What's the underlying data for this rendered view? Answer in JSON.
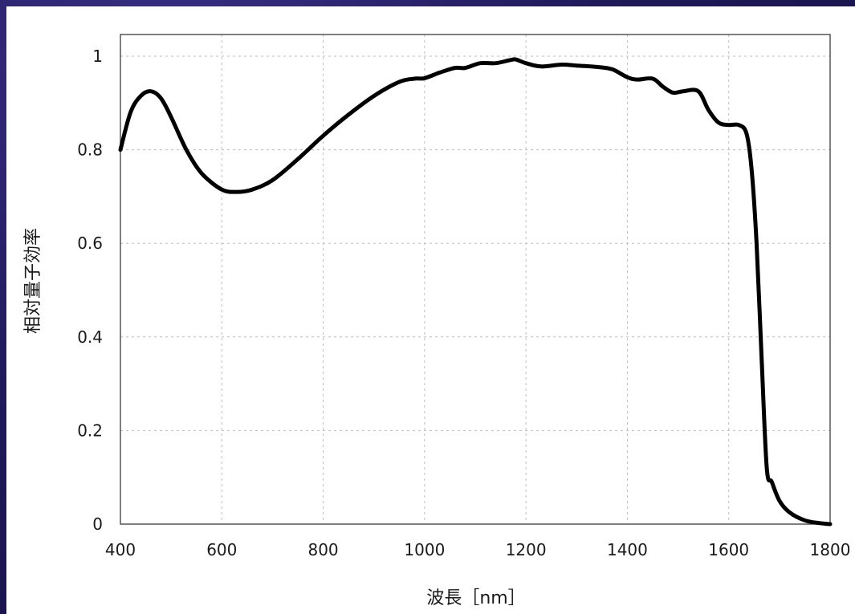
{
  "chart_data": {
    "type": "line",
    "title": "",
    "xlabel": "波長［nm］",
    "ylabel": "相対量子効率",
    "xlim": [
      400,
      1800
    ],
    "ylim": [
      0,
      1
    ],
    "grid": true,
    "x_ticks": [
      "400",
      "600",
      "800",
      "1000",
      "1200",
      "1400",
      "1600",
      "1800"
    ],
    "y_ticks": [
      "0",
      "0.2",
      "0.4",
      "0.6",
      "0.8",
      "1"
    ],
    "series": [
      {
        "x": [
          400,
          420,
          440,
          460,
          480,
          500,
          530,
          560,
          600,
          630,
          660,
          700,
          750,
          800,
          850,
          900,
          950,
          980,
          1000,
          1030,
          1060,
          1080,
          1110,
          1140,
          1170,
          1180,
          1200,
          1230,
          1270,
          1300,
          1340,
          1370,
          1400,
          1420,
          1450,
          1470,
          1490,
          1510,
          1540,
          1560,
          1580,
          1600,
          1620,
          1635,
          1645,
          1655,
          1665,
          1675,
          1685,
          1700,
          1720,
          1750,
          1780,
          1800
        ],
        "y": [
          0.8,
          0.88,
          0.915,
          0.925,
          0.91,
          0.87,
          0.8,
          0.75,
          0.715,
          0.71,
          0.715,
          0.735,
          0.78,
          0.83,
          0.875,
          0.915,
          0.945,
          0.952,
          0.953,
          0.965,
          0.975,
          0.975,
          0.985,
          0.985,
          0.992,
          0.993,
          0.985,
          0.978,
          0.982,
          0.98,
          0.977,
          0.972,
          0.955,
          0.95,
          0.952,
          0.935,
          0.922,
          0.925,
          0.925,
          0.885,
          0.858,
          0.853,
          0.853,
          0.835,
          0.76,
          0.6,
          0.35,
          0.12,
          0.09,
          0.05,
          0.025,
          0.008,
          0.002,
          0.0
        ]
      }
    ]
  }
}
